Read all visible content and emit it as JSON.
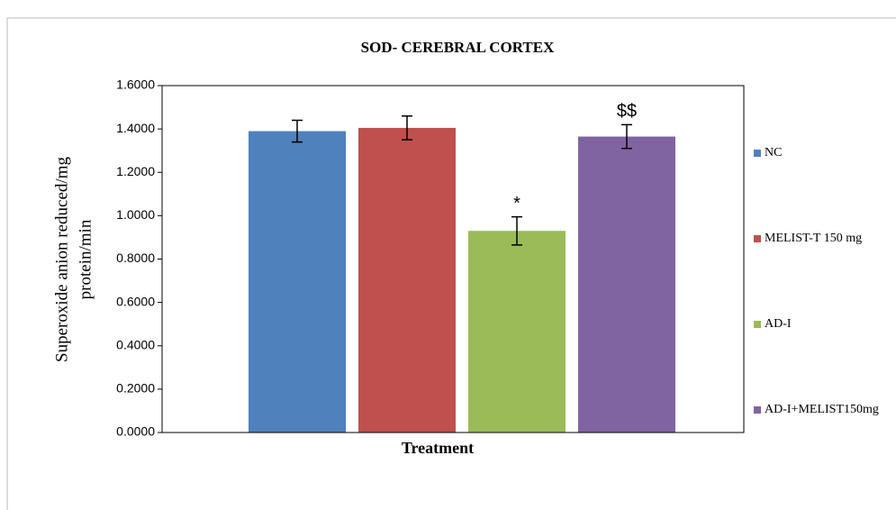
{
  "chart_data": {
    "type": "bar",
    "title": "SOD- CEREBRAL CORTEX",
    "xlabel": "Treatment",
    "ylabel": [
      "Superoxide anion reduced/mg",
      "protein/min"
    ],
    "categories": [
      null
    ],
    "series": [
      {
        "name": "NC",
        "color": "#4f81bd",
        "values": [
          1.39
        ],
        "errors": [
          0.05
        ],
        "annotations": [
          null
        ]
      },
      {
        "name": "MELIST-T 150 mg",
        "color": "#c0504d",
        "values": [
          1.405
        ],
        "errors": [
          0.055
        ],
        "annotations": [
          null
        ]
      },
      {
        "name": "AD-I",
        "color": "#9bbb59",
        "values": [
          0.93
        ],
        "errors": [
          0.065
        ],
        "annotations": [
          "*"
        ]
      },
      {
        "name": "AD-I+MELIST150mg",
        "color": "#8064a2",
        "values": [
          1.365
        ],
        "errors": [
          0.055
        ],
        "annotations": [
          "$$"
        ]
      }
    ],
    "ylim": [
      0,
      1.6
    ],
    "yticks": [
      {
        "value": 0,
        "label": "0.0000"
      },
      {
        "value": 0.2,
        "label": "0.2000"
      },
      {
        "value": 0.4,
        "label": "0.4000"
      },
      {
        "value": 0.6,
        "label": "0.6000"
      },
      {
        "value": 0.8,
        "label": "0.8000"
      },
      {
        "value": 1.0,
        "label": "1.0000"
      },
      {
        "value": 1.2,
        "label": "1.2000"
      },
      {
        "value": 1.4,
        "label": "1.4000"
      },
      {
        "value": 1.6,
        "label": "1.6000"
      }
    ],
    "legend": "right"
  }
}
